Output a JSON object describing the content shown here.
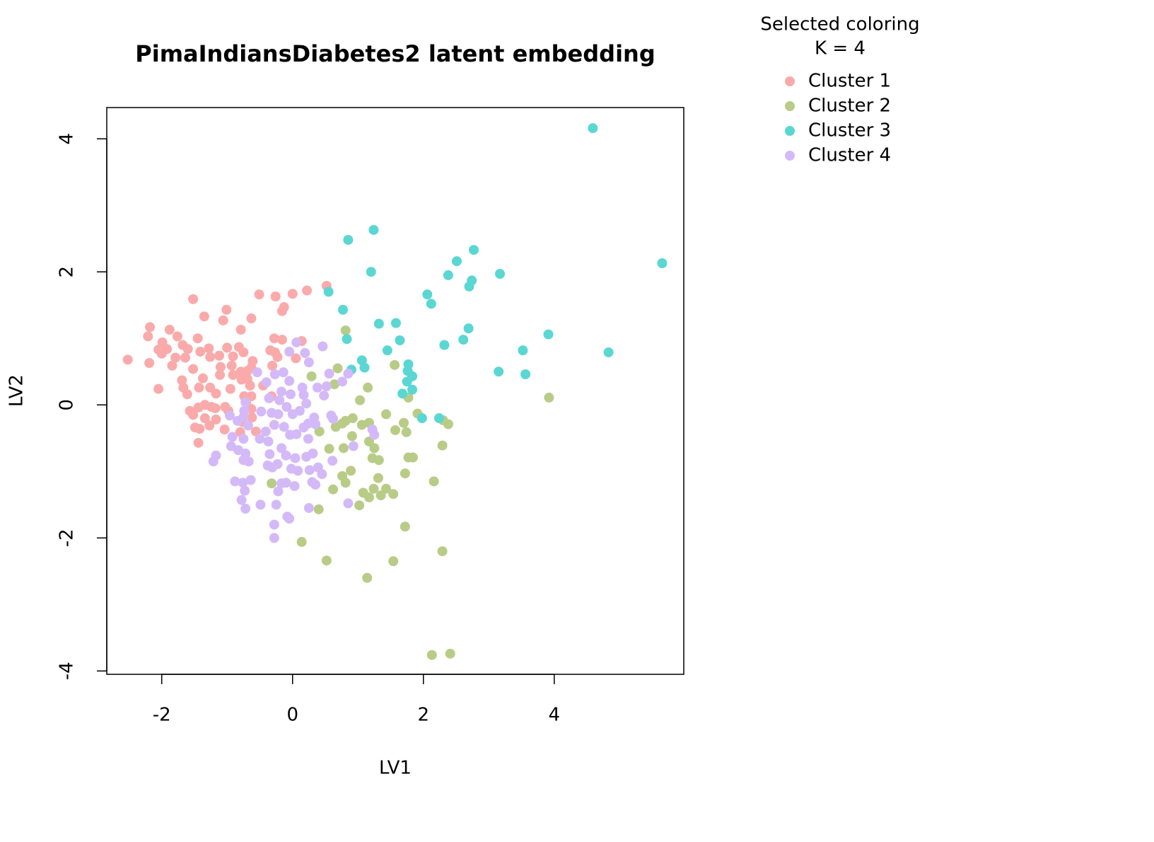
{
  "chart_data": {
    "type": "scatter",
    "title": "PimaIndiansDiabetes2 latent embedding",
    "x_label": "LV1",
    "y_label": "LV2",
    "legend_title": [
      "Selected coloring",
      "K = 4"
    ],
    "legend_position": "outside-right",
    "xlim": [
      -2.84,
      5.98
    ],
    "ylim": [
      -4.05,
      4.47
    ],
    "xticks": [
      -2,
      0,
      2,
      4
    ],
    "yticks": [
      -4,
      -2,
      0,
      2,
      4
    ],
    "series": [
      {
        "name": "Cluster 1",
        "color": "#FAAAAA",
        "x": [
          -2.52,
          -2.18,
          -2.21,
          -2.19,
          -2.05,
          -1.88,
          -1.76,
          -1.99,
          -2.05,
          -1.92,
          -2.0,
          -1.79,
          -1.84,
          -1.68,
          -1.6,
          -1.64,
          -1.45,
          -1.52,
          -1.35,
          -1.01,
          -1.06,
          -0.79,
          -0.63,
          -0.51,
          -0.26,
          -0.13,
          0.0,
          0.22,
          0.52,
          -0.16,
          -0.28,
          -0.16,
          0.14,
          -1.0,
          -0.82,
          -1.28,
          -1.12,
          -1.41,
          -1.26,
          -0.91,
          -0.75,
          -1.69,
          -1.67,
          -1.61,
          -1.57,
          -1.52,
          -1.49,
          -1.42,
          -1.44,
          -1.52,
          -1.37,
          -1.43,
          -1.26,
          -1.17,
          -1.34,
          -1.44,
          -1.24,
          -1.18,
          -1.03,
          -0.98,
          -1.34,
          -1.17,
          -1.27,
          -1.04,
          -1.1,
          -1.11,
          -0.95,
          -0.93,
          -0.91,
          -0.79,
          -0.69,
          -0.61,
          -0.63,
          -0.69,
          -0.78,
          -0.65,
          -0.74,
          -0.63,
          -0.71,
          -0.63,
          -0.62,
          -0.76,
          -0.8,
          -0.56,
          -0.45,
          -0.32,
          -0.27,
          -0.23,
          -0.31,
          0.05,
          -0.34
        ],
        "y": [
          0.68,
          1.17,
          1.03,
          0.63,
          0.24,
          1.13,
          1.03,
          0.94,
          0.83,
          0.84,
          0.77,
          0.71,
          0.59,
          0.9,
          0.84,
          0.71,
          1.0,
          1.59,
          1.33,
          1.43,
          1.27,
          1.13,
          1.3,
          1.66,
          1.63,
          1.47,
          1.67,
          1.72,
          1.79,
          1.41,
          1.0,
          0.98,
          0.96,
          0.86,
          0.87,
          0.85,
          0.74,
          0.8,
          0.72,
          0.73,
          0.79,
          0.37,
          0.26,
          0.16,
          -0.09,
          -0.15,
          -0.34,
          -0.36,
          -0.57,
          0.54,
          0.4,
          0.26,
          0.26,
          0.17,
          0.0,
          -0.04,
          -0.03,
          -0.05,
          -0.03,
          -0.09,
          -0.2,
          -0.22,
          -0.31,
          -0.37,
          0.57,
          0.45,
          0.24,
          0.59,
          0.45,
          0.5,
          0.51,
          0.66,
          0.56,
          0.39,
          0.38,
          0.29,
          0.13,
          0.13,
          0.03,
          -0.06,
          -0.19,
          -0.26,
          -0.41,
          -0.4,
          0.29,
          0.13,
          0.79,
          0.72,
          0.59,
          0.7,
          0.82
        ]
      },
      {
        "name": "Cluster 2",
        "color": "#B9CC87",
        "x": [
          2.41,
          2.13,
          1.14,
          1.54,
          0.52,
          0.14,
          2.29,
          1.72,
          0.4,
          1.02,
          1.17,
          1.35,
          1.54,
          1.43,
          1.08,
          1.24,
          0.62,
          0.81,
          -0.32,
          2.16,
          0.76,
          1.31,
          0.89,
          1.72,
          1.32,
          1.22,
          1.84,
          1.77,
          1.25,
          0.56,
          0.78,
          2.29,
          1.17,
          0.91,
          0.41,
          1.57,
          1.74,
          0.66,
          0.76,
          0.81,
          0.92,
          1.06,
          1.17,
          1.7,
          2.3,
          2.38,
          1.91,
          1.43,
          1.03,
          1.77,
          3.92,
          1.15,
          0.64,
          0.29,
          0.69,
          1.56,
          0.81
        ],
        "y": [
          -3.74,
          -3.76,
          -2.6,
          -2.35,
          -2.34,
          -2.06,
          -2.2,
          -1.83,
          -1.57,
          -1.51,
          -1.39,
          -1.36,
          -1.34,
          -1.26,
          -1.32,
          -1.26,
          -1.27,
          -1.17,
          -1.18,
          -1.15,
          -1.07,
          -1.1,
          -0.99,
          -1.03,
          -0.83,
          -0.8,
          -0.79,
          -0.79,
          -0.65,
          -0.66,
          -0.65,
          -0.61,
          -0.55,
          -0.47,
          -0.4,
          -0.38,
          -0.41,
          -0.33,
          -0.28,
          -0.24,
          -0.2,
          -0.3,
          -0.27,
          -0.27,
          -0.23,
          -0.29,
          -0.13,
          -0.14,
          0.07,
          0.11,
          0.11,
          0.26,
          0.31,
          0.43,
          0.55,
          0.6,
          1.12
        ]
      },
      {
        "name": "Cluster 3",
        "color": "#5AD7D3",
        "x": [
          4.59,
          5.65,
          4.83,
          1.24,
          0.85,
          1.2,
          2.77,
          2.51,
          2.38,
          2.74,
          2.7,
          3.17,
          2.06,
          2.12,
          0.55,
          0.77,
          1.58,
          1.32,
          2.69,
          3.91,
          1.64,
          0.83,
          2.61,
          2.32,
          1.45,
          3.52,
          1.06,
          1.1,
          1.77,
          1.76,
          3.15,
          3.56,
          1.83,
          1.75,
          1.83,
          1.68,
          0.9,
          1.98,
          2.24
        ],
        "y": [
          4.16,
          2.13,
          0.79,
          2.63,
          2.48,
          2.0,
          2.33,
          2.16,
          1.95,
          1.87,
          1.78,
          1.97,
          1.66,
          1.52,
          1.7,
          1.43,
          1.23,
          1.22,
          1.15,
          1.06,
          0.97,
          0.99,
          0.98,
          0.9,
          0.82,
          0.82,
          0.67,
          0.56,
          0.61,
          0.51,
          0.5,
          0.46,
          0.43,
          0.35,
          0.23,
          0.17,
          0.53,
          -0.2,
          -0.2
        ]
      },
      {
        "name": "Cluster 4",
        "color": "#D4B9F8",
        "x": [
          -0.28,
          -0.28,
          -0.05,
          -0.08,
          -0.72,
          -0.78,
          -0.49,
          -0.25,
          0.25,
          0.85,
          -0.73,
          -0.88,
          -0.76,
          -0.64,
          -0.17,
          -0.1,
          0.03,
          -0.22,
          0.3,
          0.35,
          0.26,
          0.45,
          0.39,
          -0.02,
          0.08,
          -0.38,
          -0.23,
          -0.31,
          -1.21,
          -1.17,
          -0.67,
          -0.72,
          -0.83,
          -0.94,
          -0.75,
          -0.92,
          -0.35,
          -0.17,
          -0.1,
          0.04,
          0.21,
          0.31,
          0.61,
          0.93,
          -0.37,
          -0.41,
          -0.5,
          -0.68,
          -0.75,
          -0.74,
          -0.72,
          -0.48,
          -0.32,
          -0.22,
          -0.28,
          -0.13,
          -0.04,
          0.06,
          0.17,
          0.24,
          0.24,
          0.35,
          0.33,
          0.11,
          0.21,
          -0.09,
          0.0,
          -0.2,
          -0.36,
          -0.17,
          -0.03,
          0.15,
          0.17,
          0.38,
          0.48,
          0.56,
          0.52,
          0.76,
          0.85,
          0.59,
          0.62,
          1.22,
          1.25,
          -0.14,
          -0.05,
          -0.4,
          -0.27,
          -0.54,
          0.06,
          -0.05,
          0.19,
          0.25,
          0.46,
          -0.75,
          -0.96,
          -0.84
        ],
        "y": [
          -2.0,
          -1.8,
          -1.71,
          -1.68,
          -1.56,
          -1.43,
          -1.5,
          -1.5,
          -1.55,
          -1.48,
          -1.29,
          -1.15,
          -1.17,
          -1.13,
          -1.18,
          -1.17,
          -1.22,
          -1.3,
          -1.16,
          -1.2,
          -0.98,
          -1.04,
          -0.94,
          -0.96,
          -0.99,
          -0.91,
          -0.89,
          -0.94,
          -0.85,
          -0.76,
          -0.85,
          -0.73,
          -0.68,
          -0.62,
          -0.51,
          -0.48,
          -0.74,
          -0.65,
          -0.76,
          -0.8,
          -0.78,
          -0.73,
          -0.84,
          -0.62,
          -0.55,
          -0.4,
          -0.51,
          -0.31,
          -0.18,
          -0.09,
          0.04,
          -0.1,
          -0.12,
          -0.14,
          -0.3,
          -0.33,
          -0.45,
          -0.44,
          -0.34,
          -0.51,
          -0.28,
          -0.29,
          -0.19,
          -0.09,
          0.02,
          -0.03,
          -0.14,
          0.07,
          0.1,
          0.2,
          0.16,
          0.26,
          0.15,
          0.26,
          0.14,
          0.47,
          0.28,
          0.35,
          0.47,
          -0.16,
          -0.21,
          -0.37,
          -0.45,
          0.49,
          0.36,
          0.34,
          0.46,
          0.49,
          0.94,
          0.8,
          0.78,
          0.64,
          0.88,
          -0.83,
          -0.16,
          -0.24
        ]
      }
    ]
  }
}
